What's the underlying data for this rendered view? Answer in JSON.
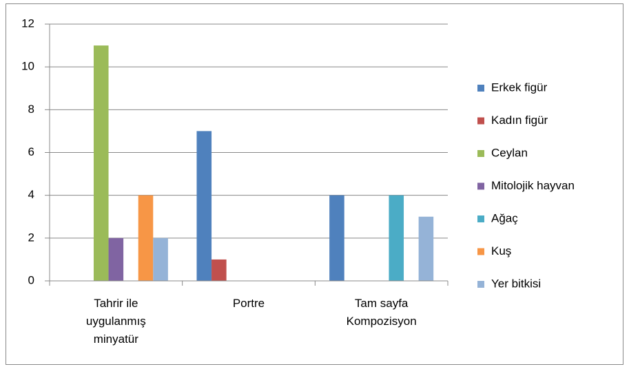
{
  "chart_data": {
    "type": "bar",
    "categories": [
      "Tahrir ile uygulanmış minyatür",
      "Portre",
      "Tam sayfa Kompozisyon"
    ],
    "series": [
      {
        "name": "Erkek figür",
        "color": "#4F81BD",
        "values": [
          0,
          7,
          4
        ]
      },
      {
        "name": "Kadın figür",
        "color": "#C0504D",
        "values": [
          0,
          1,
          0
        ]
      },
      {
        "name": "Ceylan",
        "color": "#9BBB59",
        "values": [
          11,
          0,
          0
        ]
      },
      {
        "name": "Mitolojik hayvan",
        "color": "#8064A2",
        "values": [
          2,
          0,
          0
        ]
      },
      {
        "name": "Ağaç",
        "color": "#4BACC6",
        "values": [
          0,
          0,
          4
        ]
      },
      {
        "name": "Kuş",
        "color": "#F79646",
        "values": [
          4,
          0,
          0
        ]
      },
      {
        "name": "Yer bitkisi",
        "color": "#95B3D7",
        "values": [
          2,
          0,
          3
        ]
      }
    ],
    "ylim": [
      0,
      12
    ],
    "yticks": [
      0,
      2,
      4,
      6,
      8,
      10,
      12
    ],
    "grid": true,
    "legend": "right"
  }
}
